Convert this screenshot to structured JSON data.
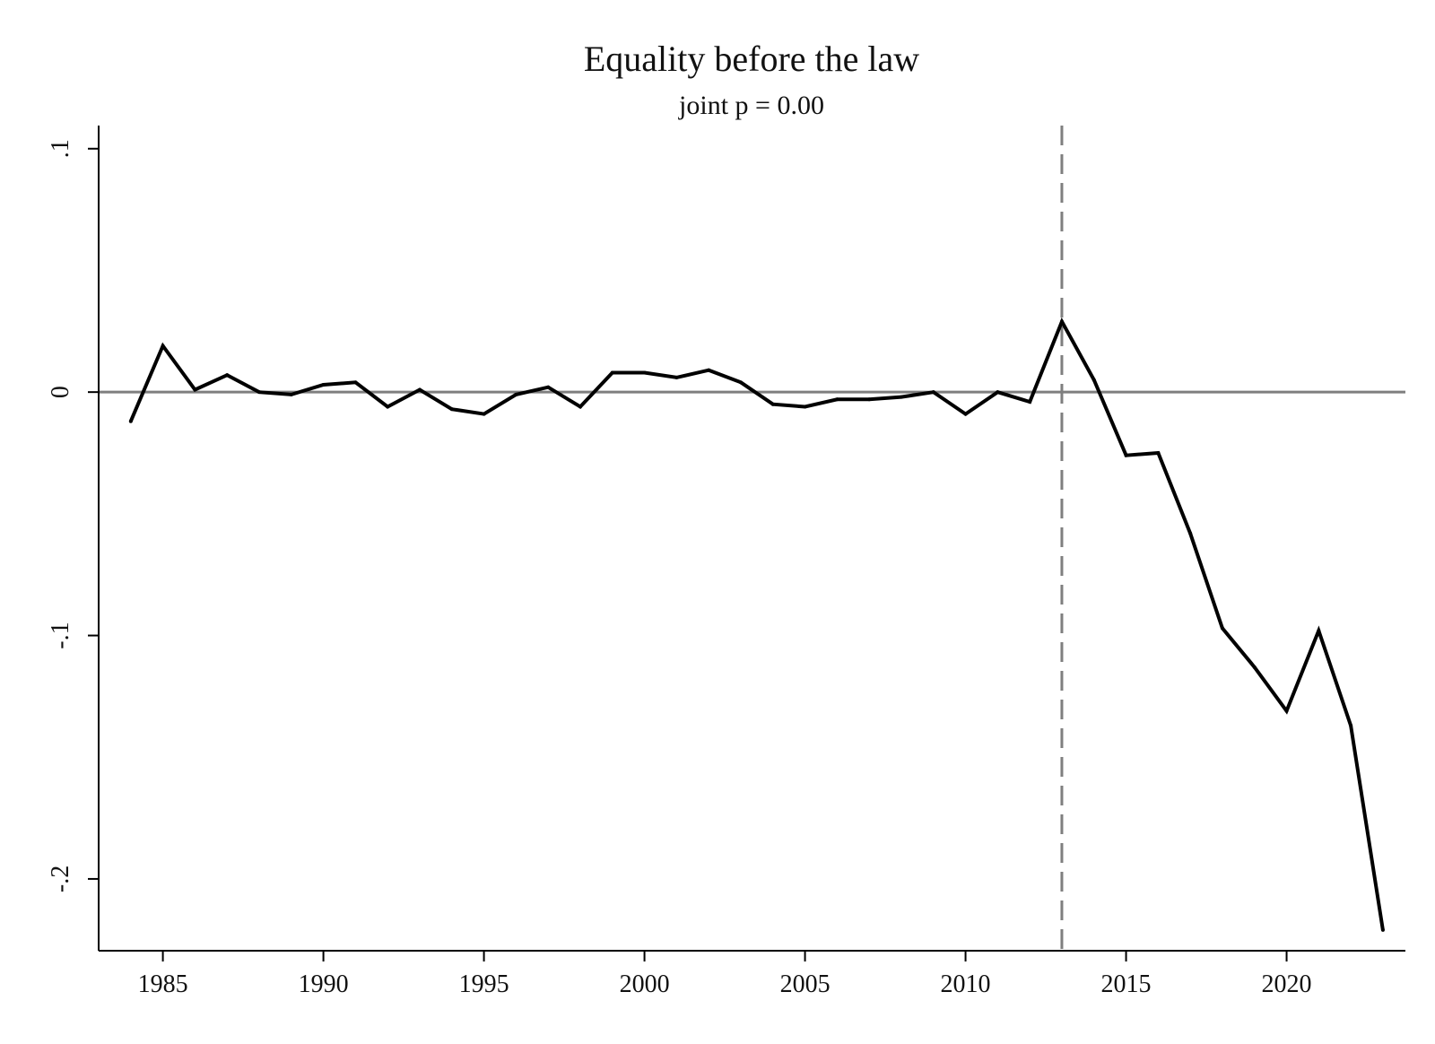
{
  "chart_data": {
    "type": "line",
    "title": "Equality before the law",
    "subtitle": "joint p = 0.00",
    "xlabel": "",
    "ylabel": "",
    "xlim": [
      1983,
      2023.7
    ],
    "ylim": [
      -0.2295,
      0.1095
    ],
    "x_ticks": [
      1985,
      1990,
      1995,
      2000,
      2005,
      2010,
      2015,
      2020
    ],
    "x_tick_labels": [
      "1985",
      "1990",
      "1995",
      "2000",
      "2005",
      "2010",
      "2015",
      "2020"
    ],
    "y_ticks": [
      0.1,
      0,
      -0.1,
      -0.2
    ],
    "y_tick_labels": [
      ".1",
      "0",
      "-.1",
      "-.2"
    ],
    "grid": false,
    "reference_lines": {
      "horizontal": {
        "y": 0,
        "color": "#7f7f7f",
        "style": "solid"
      },
      "vertical": {
        "x": 2013,
        "color": "#7f7f7f",
        "style": "dashed"
      }
    },
    "series": [
      {
        "color": "#000000",
        "x": [
          1984,
          1985,
          1986,
          1987,
          1988,
          1989,
          1990,
          1991,
          1992,
          1993,
          1994,
          1995,
          1996,
          1997,
          1998,
          1999,
          2000,
          2001,
          2002,
          2003,
          2004,
          2005,
          2006,
          2007,
          2008,
          2009,
          2010,
          2011,
          2012,
          2013,
          2014,
          2015,
          2016,
          2017,
          2018,
          2019,
          2020,
          2021,
          2022,
          2023
        ],
        "y": [
          -0.012,
          0.019,
          0.001,
          0.007,
          0.0,
          -0.001,
          0.003,
          0.004,
          -0.006,
          0.001,
          -0.007,
          -0.009,
          -0.001,
          0.002,
          -0.006,
          0.008,
          0.008,
          0.006,
          0.009,
          0.004,
          -0.005,
          -0.006,
          -0.003,
          -0.003,
          -0.002,
          0.0,
          -0.009,
          0.0,
          -0.004,
          0.029,
          0.005,
          -0.026,
          -0.025,
          -0.058,
          -0.097,
          -0.113,
          -0.131,
          -0.098,
          -0.137,
          -0.221
        ]
      }
    ]
  },
  "colors": {
    "line": "#000000",
    "axis": "#000000",
    "reference": "#7f7f7f",
    "background": "#ffffff"
  }
}
